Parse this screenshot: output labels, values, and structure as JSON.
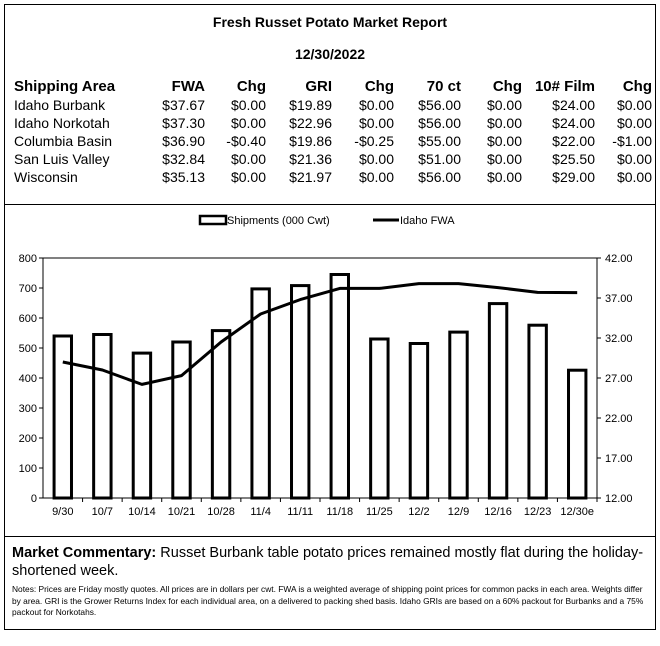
{
  "report": {
    "title": "Fresh Russet Potato Market Report",
    "date": "12/30/2022"
  },
  "table": {
    "headers": [
      "Shipping Area",
      "FWA",
      "Chg",
      "GRI",
      "Chg",
      "70 ct",
      "Chg",
      "10# Film",
      "Chg"
    ],
    "rows": [
      [
        "Idaho Burbank",
        "$37.67",
        "$0.00",
        "$19.89",
        "$0.00",
        "$56.00",
        "$0.00",
        "$24.00",
        "$0.00"
      ],
      [
        "Idaho Norkotah",
        "$37.30",
        "$0.00",
        "$22.96",
        "$0.00",
        "$56.00",
        "$0.00",
        "$24.00",
        "$0.00"
      ],
      [
        "Columbia Basin",
        "$36.90",
        "-$0.40",
        "$19.86",
        "-$0.25",
        "$55.00",
        "$0.00",
        "$22.00",
        "-$1.00"
      ],
      [
        "San Luis Valley",
        "$32.84",
        "$0.00",
        "$21.36",
        "$0.00",
        "$51.00",
        "$0.00",
        "$25.50",
        "$0.00"
      ],
      [
        "Wisconsin",
        "$35.13",
        "$0.00",
        "$21.97",
        "$0.00",
        "$56.00",
        "$0.00",
        "$29.00",
        "$0.00"
      ]
    ]
  },
  "chart_data": {
    "type": "bar",
    "categories": [
      "9/30",
      "10/7",
      "10/14",
      "10/21",
      "10/28",
      "11/4",
      "11/11",
      "11/18",
      "11/25",
      "12/2",
      "12/9",
      "12/16",
      "12/23",
      "12/30e"
    ],
    "series": [
      {
        "name": "Shipments (000 Cwt)",
        "type": "bar",
        "axis": "left",
        "values": [
          540,
          545,
          483,
          520,
          558,
          697,
          708,
          745,
          530,
          515,
          553,
          648,
          576,
          426
        ]
      },
      {
        "name": "Idaho FWA",
        "type": "line",
        "axis": "right",
        "values": [
          29.0,
          28.0,
          26.2,
          27.3,
          31.5,
          35.0,
          36.8,
          38.2,
          38.2,
          38.8,
          38.8,
          38.3,
          37.7,
          37.67
        ]
      }
    ],
    "y_left": {
      "min": 0,
      "max": 800,
      "ticks": [
        "0",
        "100",
        "200",
        "300",
        "400",
        "500",
        "600",
        "700",
        "800"
      ]
    },
    "y_right": {
      "min": 12,
      "max": 42,
      "ticks": [
        "12.00",
        "17.00",
        "22.00",
        "27.00",
        "32.00",
        "37.00",
        "42.00"
      ]
    },
    "legend_position": "top-center",
    "grid": false
  },
  "commentary": {
    "label": "Market Commentary:",
    "text": " Russet Burbank table potato prices remained mostly flat during the holiday-shortened week."
  },
  "notes": "Notes: Prices are Friday mostly quotes. All prices are in dollars per cwt. FWA is a weighted average of shipping point prices for  common packs in each area. Weights differ by area. GRI is the Grower Returns Index for each individual area, on a delivered to packing shed basis. Idaho GRIs are based on a 60% packout for Burbanks and a 75% packout for Norkotahs."
}
